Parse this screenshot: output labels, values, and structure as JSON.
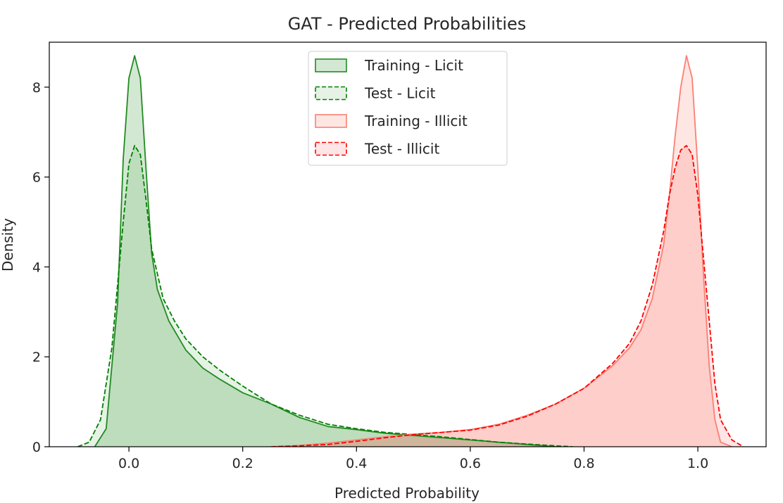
{
  "chart_data": {
    "type": "area",
    "title": "GAT - Predicted Probabilities",
    "xlabel": "Predicted Probability",
    "ylabel": "Density",
    "xlim": [
      -0.14,
      1.12
    ],
    "ylim": [
      0,
      9.0
    ],
    "x_ticks": [
      0.0,
      0.2,
      0.4,
      0.6,
      0.8,
      1.0
    ],
    "x_tick_labels": [
      "0.0",
      "0.2",
      "0.4",
      "0.6",
      "0.8",
      "1.0"
    ],
    "y_ticks": [
      0,
      2,
      4,
      6,
      8
    ],
    "y_tick_labels": [
      "0",
      "2",
      "4",
      "6",
      "8"
    ],
    "grid": false,
    "legend_position": "top-center",
    "series": [
      {
        "name": "Training - Licit",
        "color": "#228b22",
        "line_style": "solid",
        "x": [
          -0.06,
          -0.04,
          -0.02,
          -0.01,
          0.0,
          0.01,
          0.02,
          0.03,
          0.04,
          0.05,
          0.07,
          0.1,
          0.13,
          0.16,
          0.2,
          0.25,
          0.3,
          0.35,
          0.4,
          0.45,
          0.5,
          0.55,
          0.6,
          0.65,
          0.7,
          0.75
        ],
        "y": [
          0.0,
          0.4,
          3.2,
          6.4,
          8.2,
          8.7,
          8.2,
          6.2,
          4.3,
          3.5,
          2.8,
          2.15,
          1.75,
          1.5,
          1.2,
          0.95,
          0.65,
          0.45,
          0.38,
          0.3,
          0.25,
          0.2,
          0.15,
          0.1,
          0.05,
          0.0
        ]
      },
      {
        "name": "Test - Licit",
        "color": "#008000",
        "line_style": "dashed",
        "x": [
          -0.09,
          -0.07,
          -0.05,
          -0.03,
          -0.01,
          0.0,
          0.01,
          0.02,
          0.03,
          0.04,
          0.06,
          0.08,
          0.1,
          0.13,
          0.16,
          0.2,
          0.25,
          0.3,
          0.35,
          0.4,
          0.45,
          0.5,
          0.55,
          0.6,
          0.65,
          0.7,
          0.75,
          0.78
        ],
        "y": [
          0.0,
          0.1,
          0.6,
          2.2,
          5.0,
          6.3,
          6.7,
          6.5,
          5.5,
          4.4,
          3.3,
          2.8,
          2.4,
          2.0,
          1.7,
          1.35,
          0.95,
          0.7,
          0.5,
          0.4,
          0.32,
          0.27,
          0.22,
          0.16,
          0.1,
          0.06,
          0.02,
          0.0
        ]
      },
      {
        "name": "Training - Illicit",
        "color": "#fa8072",
        "line_style": "solid",
        "x": [
          0.25,
          0.3,
          0.35,
          0.4,
          0.45,
          0.5,
          0.55,
          0.6,
          0.65,
          0.7,
          0.75,
          0.8,
          0.85,
          0.88,
          0.9,
          0.92,
          0.94,
          0.95,
          0.96,
          0.97,
          0.98,
          0.99,
          1.0,
          1.01,
          1.02,
          1.03,
          1.04,
          1.06
        ],
        "y": [
          0.0,
          0.03,
          0.08,
          0.15,
          0.22,
          0.28,
          0.32,
          0.38,
          0.5,
          0.7,
          0.95,
          1.3,
          1.8,
          2.2,
          2.6,
          3.3,
          4.5,
          5.6,
          6.9,
          8.0,
          8.7,
          8.2,
          6.2,
          3.8,
          1.8,
          0.6,
          0.1,
          0.0
        ]
      },
      {
        "name": "Test - Illicit",
        "color": "#ff0000",
        "line_style": "dashed",
        "x": [
          0.25,
          0.3,
          0.35,
          0.4,
          0.45,
          0.5,
          0.55,
          0.6,
          0.65,
          0.7,
          0.75,
          0.8,
          0.85,
          0.88,
          0.9,
          0.92,
          0.94,
          0.95,
          0.96,
          0.97,
          0.98,
          0.99,
          1.0,
          1.01,
          1.02,
          1.03,
          1.04,
          1.06,
          1.08
        ],
        "y": [
          0.0,
          0.02,
          0.05,
          0.12,
          0.2,
          0.27,
          0.32,
          0.37,
          0.48,
          0.68,
          0.95,
          1.3,
          1.85,
          2.3,
          2.8,
          3.6,
          4.8,
          5.6,
          6.2,
          6.6,
          6.7,
          6.5,
          5.6,
          4.2,
          2.8,
          1.4,
          0.6,
          0.15,
          0.0
        ]
      }
    ]
  }
}
